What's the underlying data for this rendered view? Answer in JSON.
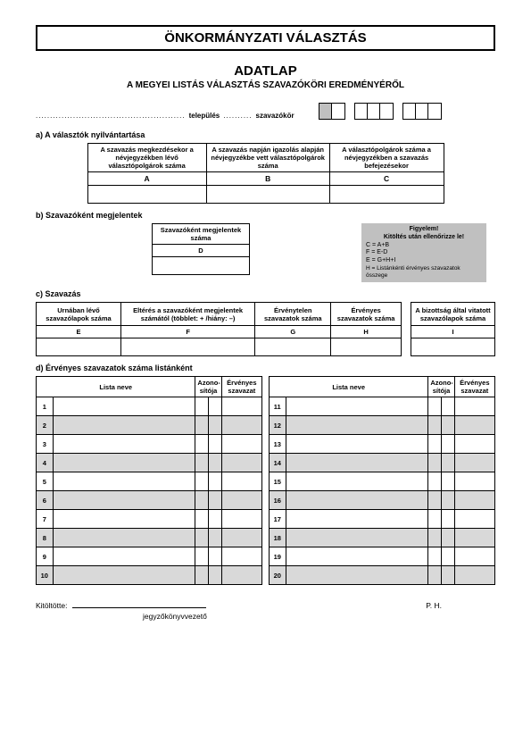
{
  "colors": {
    "shade_dark": "#c0c0c0",
    "shade_light": "#d9d9d9",
    "border": "#000000",
    "background": "#ffffff"
  },
  "title_band": "ÖNKORMÁNYZATI VÁLASZTÁS",
  "doc_title": "ADATLAP",
  "doc_subtitle": "A MEGYEI LISTÁS VÁLASZTÁS SZAVAZÓKÖRI EREDMÉNYÉRŐL",
  "loc": {
    "dots1": "....................................................",
    "label1": "település",
    "dots2": "..........",
    "label2": "szavazókör",
    "box_groups": [
      {
        "cells": 2,
        "shaded": [
          0
        ]
      },
      {
        "cells": 3,
        "shaded": []
      },
      {
        "cells": 3,
        "shaded": []
      }
    ]
  },
  "section_a": {
    "label": "a)  A választók nyilvántartása",
    "headers": [
      "A szavazás megkezdésekor a névjegyzékben lévő választópolgárok száma",
      "A szavazás napján igazolás alapján névjegyzékbe vett választópolgárok száma",
      "A választópolgárok száma a névjegyzékben a szavazás befejezésekor"
    ],
    "letters": [
      "A",
      "B",
      "C"
    ]
  },
  "section_b": {
    "label": "b)  Szavazóként megjelentek",
    "header": "Szavazóként megjelentek száma",
    "letter": "D",
    "notice": {
      "head": "Figyelem!",
      "sub": "Kitöltés után ellenőrizze le!",
      "lines": [
        "C = A+B",
        "F = E-D",
        "E = G+H+I",
        "H = Listánkénti érvényes szavazatok összege"
      ]
    }
  },
  "section_c": {
    "label": "c)  Szavazás",
    "headers": [
      "Urnában lévő szavazólapok száma",
      "Eltérés a szavazóként megjelentek számától (többlet: + /hiány: –)",
      "Érvénytelen szavazatok száma",
      "Érvényes szavazatok száma"
    ],
    "letters": [
      "E",
      "F",
      "G",
      "H"
    ],
    "side_header": "A bizottság által vitatott szavazólapok száma",
    "side_letter": "I"
  },
  "section_d": {
    "label": "d) Érvényes szavazatok száma listánként",
    "col_lista": "Lista neve",
    "col_azon": "Azono-sítója",
    "col_erv": "Érvényes szavazat",
    "left_nums": [
      "1",
      "2",
      "3",
      "4",
      "5",
      "6",
      "7",
      "8",
      "9",
      "10"
    ],
    "right_nums": [
      "11",
      "12",
      "13",
      "14",
      "15",
      "16",
      "17",
      "18",
      "19",
      "20"
    ]
  },
  "footer": {
    "label": "Kitöltötte:",
    "role": "jegyzőkönyvvezető",
    "ph": "P. H."
  }
}
